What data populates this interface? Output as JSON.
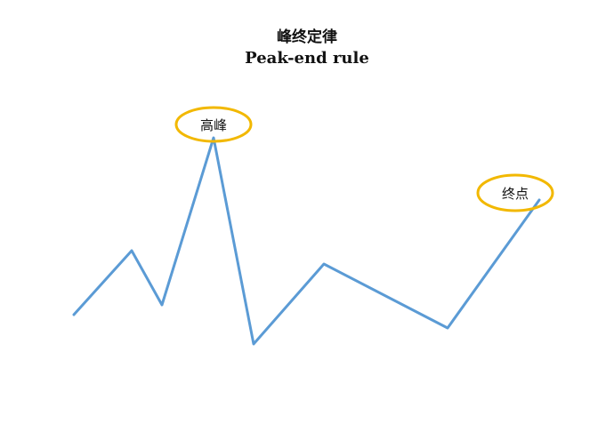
{
  "title": {
    "zh": "峰终定律",
    "en": "Peak-end rule"
  },
  "labels": {
    "peak": "高峰",
    "end": "终点"
  },
  "colors": {
    "line": "#5b9bd5",
    "highlight": "#f2b800",
    "text": "#111111",
    "background": "#ffffff"
  }
}
